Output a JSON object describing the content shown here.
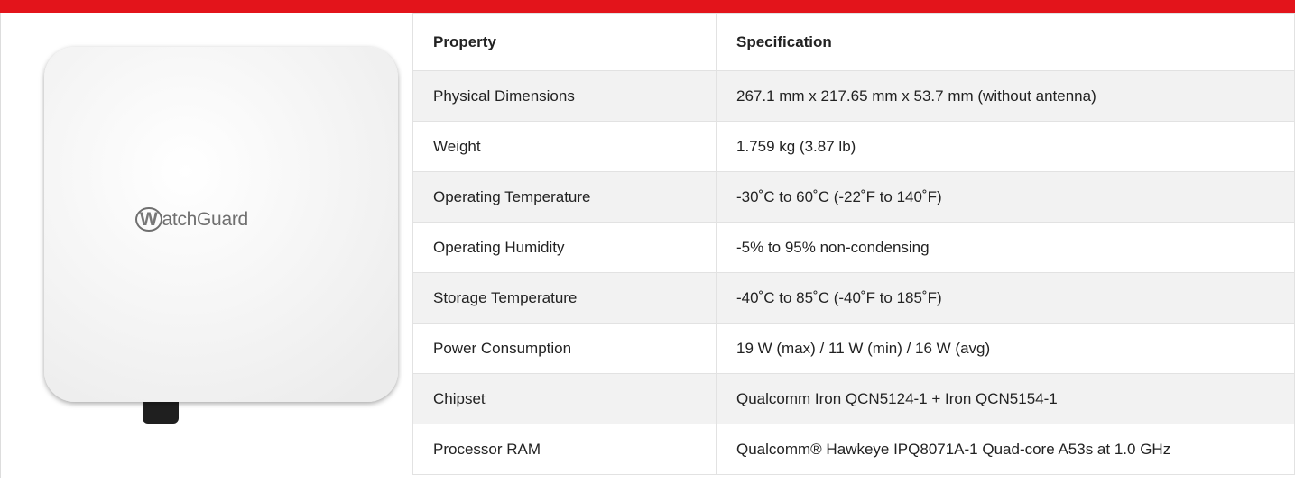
{
  "logo": "WatchGuard",
  "table": {
    "header": [
      "Property",
      "Specification"
    ],
    "rows": [
      [
        "Physical Dimensions",
        "267.1 mm x 217.65 mm x 53.7 mm (without antenna)"
      ],
      [
        "Weight",
        "1.759 kg (3.87 lb)"
      ],
      [
        "Operating Temperature",
        "-30˚C to 60˚C (-22˚F to 140˚F)"
      ],
      [
        "Operating Humidity",
        "-5% to 95% non-condensing"
      ],
      [
        "Storage Temperature",
        "-40˚C to 85˚C (-40˚F to 185˚F)"
      ],
      [
        "Power Consumption",
        "19 W (max) / 11 W (min) / 16 W (avg)"
      ],
      [
        "Chipset",
        "Qualcomm Iron QCN5124-1 + Iron QCN5154-1"
      ],
      [
        "Processor RAM",
        "Qualcomm® Hawkeye IPQ8071A-1 Quad-core A53s at 1.0 GHz"
      ]
    ]
  }
}
